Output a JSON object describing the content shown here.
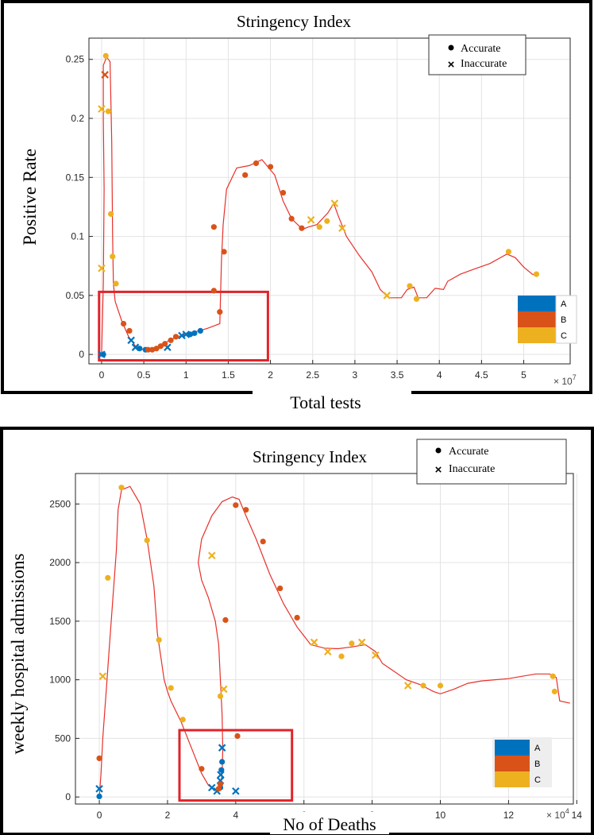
{
  "colors": {
    "A": "#0072BD",
    "B": "#D95319",
    "C": "#EDB120",
    "curve": "#E8302A",
    "box": "#E0242A"
  },
  "chart_data": [
    {
      "type": "scatter",
      "title": "Stringency Index",
      "xlabel": "Total tests",
      "ylabel": "Positive Rate",
      "x_multiplier_base": "× 10",
      "x_multiplier_exp": "7",
      "xlim": [
        -0.15,
        5.55
      ],
      "ylim": [
        -0.008,
        0.268
      ],
      "xticks": [
        0,
        0.5,
        1,
        1.5,
        2,
        2.5,
        3,
        3.5,
        4,
        4.5,
        5
      ],
      "xtick_labels": [
        "0",
        "0.5",
        "1",
        "1.5",
        "2",
        "2.5",
        "3",
        "3.5",
        "4",
        "4.5",
        "5"
      ],
      "yticks": [
        0,
        0.05,
        0.1,
        0.15,
        0.2,
        0.25
      ],
      "ytick_labels": [
        "0",
        "0.05",
        "0.1",
        "0.15",
        "0.2",
        "0.25"
      ],
      "grid": true,
      "legend": {
        "accurate": "Accurate",
        "inaccurate": "Inaccurate",
        "position": "top-right"
      },
      "colorbar": {
        "labels": [
          "A",
          "B",
          "C"
        ],
        "position": "bottom-right"
      },
      "highlight_box": {
        "x": [
          -0.03,
          1.97
        ],
        "y": [
          -0.005,
          0.053
        ]
      },
      "curve": [
        [
          0.0,
          0.0
        ],
        [
          0.02,
          0.06
        ],
        [
          0.03,
          0.14
        ],
        [
          0.02,
          0.2
        ],
        [
          0.02,
          0.245
        ],
        [
          0.06,
          0.252
        ],
        [
          0.1,
          0.248
        ],
        [
          0.12,
          0.18
        ],
        [
          0.13,
          0.1
        ],
        [
          0.14,
          0.06
        ],
        [
          0.16,
          0.045
        ],
        [
          0.24,
          0.028
        ],
        [
          0.32,
          0.015
        ],
        [
          0.4,
          0.007
        ],
        [
          0.5,
          0.004
        ],
        [
          0.6,
          0.004
        ],
        [
          0.7,
          0.007
        ],
        [
          0.8,
          0.012
        ],
        [
          0.9,
          0.015
        ],
        [
          1.0,
          0.017
        ],
        [
          1.1,
          0.019
        ],
        [
          1.25,
          0.022
        ],
        [
          1.4,
          0.026
        ],
        [
          1.42,
          0.08
        ],
        [
          1.44,
          0.11
        ],
        [
          1.48,
          0.14
        ],
        [
          1.6,
          0.158
        ],
        [
          1.75,
          0.16
        ],
        [
          1.9,
          0.165
        ],
        [
          2.05,
          0.152
        ],
        [
          2.15,
          0.13
        ],
        [
          2.25,
          0.115
        ],
        [
          2.38,
          0.106
        ],
        [
          2.45,
          0.108
        ],
        [
          2.55,
          0.11
        ],
        [
          2.68,
          0.12
        ],
        [
          2.75,
          0.128
        ],
        [
          2.8,
          0.118
        ],
        [
          2.9,
          0.1
        ],
        [
          3.05,
          0.084
        ],
        [
          3.2,
          0.07
        ],
        [
          3.3,
          0.055
        ],
        [
          3.4,
          0.048
        ],
        [
          3.55,
          0.048
        ],
        [
          3.62,
          0.055
        ],
        [
          3.7,
          0.057
        ],
        [
          3.75,
          0.048
        ],
        [
          3.85,
          0.048
        ],
        [
          3.95,
          0.056
        ],
        [
          4.05,
          0.055
        ],
        [
          4.1,
          0.062
        ],
        [
          4.25,
          0.068
        ],
        [
          4.4,
          0.072
        ],
        [
          4.6,
          0.077
        ],
        [
          4.8,
          0.085
        ],
        [
          4.9,
          0.082
        ],
        [
          5.0,
          0.074
        ],
        [
          5.1,
          0.068
        ],
        [
          5.15,
          0.067
        ]
      ],
      "points": [
        {
          "x": 0.0,
          "y": 0.0,
          "g": "A",
          "m": "x"
        },
        {
          "x": 0.02,
          "y": 0.0,
          "g": "A",
          "m": "o"
        },
        {
          "x": 0.4,
          "y": 0.006,
          "g": "A",
          "m": "x"
        },
        {
          "x": 0.35,
          "y": 0.012,
          "g": "A",
          "m": "x"
        },
        {
          "x": 0.45,
          "y": 0.005,
          "g": "A",
          "m": "o"
        },
        {
          "x": 0.52,
          "y": 0.004,
          "g": "A",
          "m": "o"
        },
        {
          "x": 0.78,
          "y": 0.006,
          "g": "A",
          "m": "x"
        },
        {
          "x": 0.95,
          "y": 0.016,
          "g": "A",
          "m": "x"
        },
        {
          "x": 1.0,
          "y": 0.017,
          "g": "A",
          "m": "x"
        },
        {
          "x": 1.05,
          "y": 0.017,
          "g": "A",
          "m": "o"
        },
        {
          "x": 1.1,
          "y": 0.018,
          "g": "A",
          "m": "o"
        },
        {
          "x": 1.17,
          "y": 0.02,
          "g": "A",
          "m": "o"
        },
        {
          "x": 0.04,
          "y": 0.237,
          "g": "B",
          "m": "x"
        },
        {
          "x": 0.26,
          "y": 0.026,
          "g": "B",
          "m": "o"
        },
        {
          "x": 0.33,
          "y": 0.02,
          "g": "B",
          "m": "o"
        },
        {
          "x": 0.55,
          "y": 0.004,
          "g": "B",
          "m": "o"
        },
        {
          "x": 0.6,
          "y": 0.004,
          "g": "B",
          "m": "o"
        },
        {
          "x": 0.65,
          "y": 0.005,
          "g": "B",
          "m": "o"
        },
        {
          "x": 0.7,
          "y": 0.007,
          "g": "B",
          "m": "o"
        },
        {
          "x": 0.75,
          "y": 0.009,
          "g": "B",
          "m": "o"
        },
        {
          "x": 0.82,
          "y": 0.012,
          "g": "B",
          "m": "o"
        },
        {
          "x": 0.88,
          "y": 0.015,
          "g": "B",
          "m": "o"
        },
        {
          "x": 1.33,
          "y": 0.054,
          "g": "B",
          "m": "o"
        },
        {
          "x": 1.33,
          "y": 0.108,
          "g": "B",
          "m": "o"
        },
        {
          "x": 1.4,
          "y": 0.036,
          "g": "B",
          "m": "o"
        },
        {
          "x": 1.45,
          "y": 0.087,
          "g": "B",
          "m": "o"
        },
        {
          "x": 1.7,
          "y": 0.152,
          "g": "B",
          "m": "o"
        },
        {
          "x": 1.83,
          "y": 0.162,
          "g": "B",
          "m": "o"
        },
        {
          "x": 2.0,
          "y": 0.159,
          "g": "B",
          "m": "o"
        },
        {
          "x": 2.15,
          "y": 0.137,
          "g": "B",
          "m": "o"
        },
        {
          "x": 2.25,
          "y": 0.115,
          "g": "B",
          "m": "o"
        },
        {
          "x": 2.37,
          "y": 0.107,
          "g": "B",
          "m": "o"
        },
        {
          "x": 0.05,
          "y": 0.253,
          "g": "C",
          "m": "o"
        },
        {
          "x": 0.0,
          "y": 0.208,
          "g": "C",
          "m": "x"
        },
        {
          "x": 0.08,
          "y": 0.206,
          "g": "C",
          "m": "o"
        },
        {
          "x": 0.11,
          "y": 0.119,
          "g": "C",
          "m": "o"
        },
        {
          "x": 0.13,
          "y": 0.083,
          "g": "C",
          "m": "o"
        },
        {
          "x": 0.0,
          "y": 0.073,
          "g": "C",
          "m": "x"
        },
        {
          "x": 0.17,
          "y": 0.06,
          "g": "C",
          "m": "o"
        },
        {
          "x": 2.48,
          "y": 0.114,
          "g": "C",
          "m": "x"
        },
        {
          "x": 2.58,
          "y": 0.108,
          "g": "C",
          "m": "o"
        },
        {
          "x": 2.67,
          "y": 0.113,
          "g": "C",
          "m": "o"
        },
        {
          "x": 2.76,
          "y": 0.128,
          "g": "C",
          "m": "x"
        },
        {
          "x": 2.85,
          "y": 0.107,
          "g": "C",
          "m": "x"
        },
        {
          "x": 3.38,
          "y": 0.05,
          "g": "C",
          "m": "x"
        },
        {
          "x": 3.65,
          "y": 0.058,
          "g": "C",
          "m": "o"
        },
        {
          "x": 3.73,
          "y": 0.047,
          "g": "C",
          "m": "o"
        },
        {
          "x": 4.82,
          "y": 0.087,
          "g": "C",
          "m": "o"
        },
        {
          "x": 5.15,
          "y": 0.068,
          "g": "C",
          "m": "o"
        }
      ]
    },
    {
      "type": "scatter",
      "title": "Stringency Index",
      "xlabel": "No of Deaths",
      "ylabel": "weekly hospital admissions",
      "x_multiplier_base": "× 10",
      "x_multiplier_exp": "4",
      "xlim": [
        -0.7,
        13.9
      ],
      "ylim": [
        -60,
        2760
      ],
      "xticks": [
        0,
        2,
        4,
        6,
        8,
        10,
        12,
        14
      ],
      "xtick_labels": [
        "0",
        "2",
        "4",
        "6",
        "8",
        "10",
        "12",
        "14"
      ],
      "yticks": [
        0,
        500,
        1000,
        1500,
        2000,
        2500
      ],
      "ytick_labels": [
        "0",
        "500",
        "1000",
        "1500",
        "2000",
        "2500"
      ],
      "grid": true,
      "legend": {
        "accurate": "Accurate",
        "inaccurate": "Inaccurate",
        "position": "top-right"
      },
      "colorbar": {
        "labels": [
          "A",
          "B",
          "C"
        ],
        "position": "bottom-right"
      },
      "highlight_box": {
        "x": [
          2.35,
          5.65
        ],
        "y": [
          -30,
          570
        ]
      },
      "curve": [
        [
          0.0,
          0.0
        ],
        [
          0.05,
          200
        ],
        [
          0.1,
          500
        ],
        [
          0.2,
          900
        ],
        [
          0.3,
          1300
        ],
        [
          0.4,
          1700
        ],
        [
          0.5,
          2100
        ],
        [
          0.55,
          2450
        ],
        [
          0.65,
          2620
        ],
        [
          0.9,
          2650
        ],
        [
          1.2,
          2500
        ],
        [
          1.4,
          2200
        ],
        [
          1.6,
          1800
        ],
        [
          1.7,
          1400
        ],
        [
          1.8,
          1200
        ],
        [
          1.9,
          1000
        ],
        [
          2.0,
          900
        ],
        [
          2.1,
          820
        ],
        [
          2.4,
          640
        ],
        [
          2.7,
          420
        ],
        [
          3.0,
          200
        ],
        [
          3.2,
          100
        ],
        [
          3.4,
          60
        ],
        [
          3.55,
          80
        ],
        [
          3.6,
          200
        ],
        [
          3.62,
          400
        ],
        [
          3.6,
          700
        ],
        [
          3.55,
          1000
        ],
        [
          3.5,
          1300
        ],
        [
          3.4,
          1500
        ],
        [
          3.2,
          1700
        ],
        [
          3.0,
          1850
        ],
        [
          2.9,
          2000
        ],
        [
          3.0,
          2200
        ],
        [
          3.3,
          2400
        ],
        [
          3.6,
          2520
        ],
        [
          3.9,
          2560
        ],
        [
          4.1,
          2540
        ],
        [
          4.3,
          2400
        ],
        [
          4.6,
          2200
        ],
        [
          5.0,
          1900
        ],
        [
          5.4,
          1650
        ],
        [
          5.8,
          1450
        ],
        [
          6.2,
          1300
        ],
        [
          6.6,
          1270
        ],
        [
          7.0,
          1265
        ],
        [
          7.4,
          1280
        ],
        [
          7.8,
          1300
        ],
        [
          8.1,
          1240
        ],
        [
          8.3,
          1140
        ],
        [
          8.6,
          1080
        ],
        [
          9.0,
          1000
        ],
        [
          9.4,
          960
        ],
        [
          9.8,
          900
        ],
        [
          10.0,
          880
        ],
        [
          10.4,
          920
        ],
        [
          10.8,
          970
        ],
        [
          11.2,
          990
        ],
        [
          11.6,
          1000
        ],
        [
          12.0,
          1010
        ],
        [
          12.4,
          1030
        ],
        [
          12.8,
          1050
        ],
        [
          13.2,
          1050
        ],
        [
          13.4,
          1020
        ],
        [
          13.5,
          820
        ],
        [
          13.8,
          800
        ]
      ],
      "points": [
        {
          "x": 0.0,
          "y": 70,
          "g": "A",
          "m": "x"
        },
        {
          "x": 0.0,
          "y": 5,
          "g": "A",
          "m": "o"
        },
        {
          "x": 3.3,
          "y": 80,
          "g": "A",
          "m": "x"
        },
        {
          "x": 3.45,
          "y": 50,
          "g": "A",
          "m": "x"
        },
        {
          "x": 3.55,
          "y": 80,
          "g": "A",
          "m": "o"
        },
        {
          "x": 3.55,
          "y": 140,
          "g": "A",
          "m": "x"
        },
        {
          "x": 3.56,
          "y": 190,
          "g": "A",
          "m": "x"
        },
        {
          "x": 3.58,
          "y": 230,
          "g": "A",
          "m": "o"
        },
        {
          "x": 3.6,
          "y": 300,
          "g": "A",
          "m": "o"
        },
        {
          "x": 3.6,
          "y": 420,
          "g": "A",
          "m": "x"
        },
        {
          "x": 4.0,
          "y": 50,
          "g": "A",
          "m": "x"
        },
        {
          "x": 0.0,
          "y": 330,
          "g": "B",
          "m": "o"
        },
        {
          "x": 3.0,
          "y": 240,
          "g": "B",
          "m": "o"
        },
        {
          "x": 3.5,
          "y": 70,
          "g": "B",
          "m": "o"
        },
        {
          "x": 3.55,
          "y": 110,
          "g": "B",
          "m": "o"
        },
        {
          "x": 3.7,
          "y": 1510,
          "g": "B",
          "m": "o"
        },
        {
          "x": 4.0,
          "y": 2490,
          "g": "B",
          "m": "o"
        },
        {
          "x": 4.05,
          "y": 520,
          "g": "B",
          "m": "o"
        },
        {
          "x": 4.3,
          "y": 2450,
          "g": "B",
          "m": "o"
        },
        {
          "x": 4.8,
          "y": 2180,
          "g": "B",
          "m": "o"
        },
        {
          "x": 5.3,
          "y": 1780,
          "g": "B",
          "m": "o"
        },
        {
          "x": 5.8,
          "y": 1530,
          "g": "B",
          "m": "o"
        },
        {
          "x": 0.1,
          "y": 1030,
          "g": "C",
          "m": "x"
        },
        {
          "x": 0.25,
          "y": 1870,
          "g": "C",
          "m": "o"
        },
        {
          "x": 0.65,
          "y": 2640,
          "g": "C",
          "m": "o"
        },
        {
          "x": 1.4,
          "y": 2190,
          "g": "C",
          "m": "o"
        },
        {
          "x": 1.75,
          "y": 1340,
          "g": "C",
          "m": "o"
        },
        {
          "x": 2.1,
          "y": 930,
          "g": "C",
          "m": "o"
        },
        {
          "x": 2.45,
          "y": 660,
          "g": "C",
          "m": "o"
        },
        {
          "x": 3.3,
          "y": 2060,
          "g": "C",
          "m": "x"
        },
        {
          "x": 3.55,
          "y": 860,
          "g": "C",
          "m": "o"
        },
        {
          "x": 3.65,
          "y": 920,
          "g": "C",
          "m": "x"
        },
        {
          "x": 6.3,
          "y": 1320,
          "g": "C",
          "m": "x"
        },
        {
          "x": 6.7,
          "y": 1240,
          "g": "C",
          "m": "x"
        },
        {
          "x": 7.1,
          "y": 1200,
          "g": "C",
          "m": "o"
        },
        {
          "x": 7.4,
          "y": 1310,
          "g": "C",
          "m": "o"
        },
        {
          "x": 7.7,
          "y": 1320,
          "g": "C",
          "m": "x"
        },
        {
          "x": 8.1,
          "y": 1210,
          "g": "C",
          "m": "x"
        },
        {
          "x": 9.05,
          "y": 950,
          "g": "C",
          "m": "x"
        },
        {
          "x": 9.5,
          "y": 950,
          "g": "C",
          "m": "o"
        },
        {
          "x": 10.0,
          "y": 950,
          "g": "C",
          "m": "o"
        },
        {
          "x": 13.3,
          "y": 1030,
          "g": "C",
          "m": "o"
        },
        {
          "x": 13.35,
          "y": 900,
          "g": "C",
          "m": "o"
        }
      ]
    }
  ]
}
